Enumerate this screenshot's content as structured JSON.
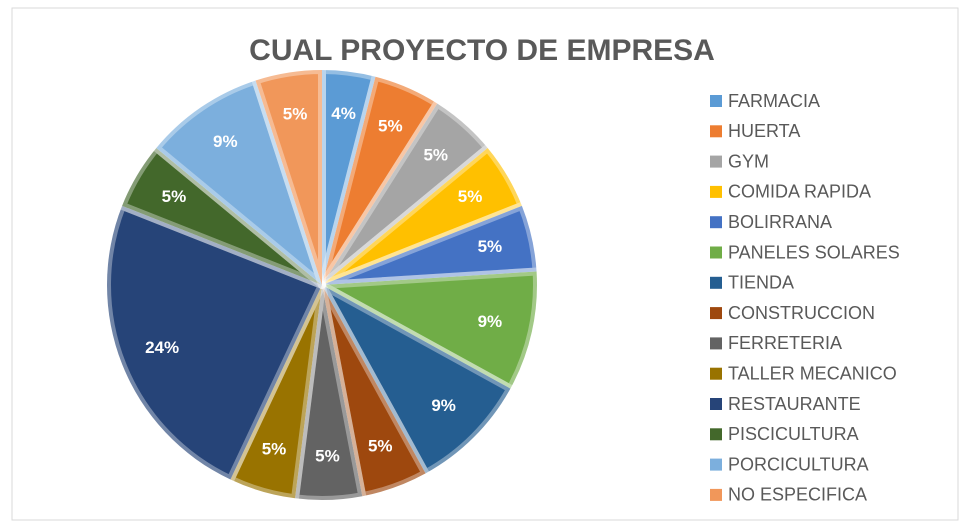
{
  "chart_data": {
    "type": "pie",
    "title": "CUAL PROYECTO DE EMPRESA",
    "categories": [
      "FARMACIA",
      "HUERTA",
      "GYM",
      "COMIDA RAPIDA",
      "BOLIRRANA",
      "PANELES SOLARES",
      "TIENDA",
      "CONSTRUCCION",
      "FERRETERIA",
      "TALLER MECANICO",
      "RESTAURANTE",
      "PISCICULTURA",
      "PORCICULTURA",
      "NO ESPECIFICA"
    ],
    "values": [
      4,
      5,
      5,
      5,
      5,
      9,
      9,
      5,
      5,
      5,
      24,
      5,
      9,
      5
    ],
    "value_labels": [
      "4%",
      "5%",
      "5%",
      "5%",
      "5%",
      "9%",
      "9%",
      "5%",
      "5%",
      "5%",
      "24%",
      "5%",
      "9%",
      "5%"
    ],
    "colors": [
      "#5b9bd5",
      "#ed7d31",
      "#a5a5a5",
      "#ffc000",
      "#4472c4",
      "#70ad47",
      "#255e91",
      "#9e480e",
      "#636363",
      "#997300",
      "#264478",
      "#43682b",
      "#7cafdd",
      "#f1975a"
    ],
    "legend": "right"
  }
}
